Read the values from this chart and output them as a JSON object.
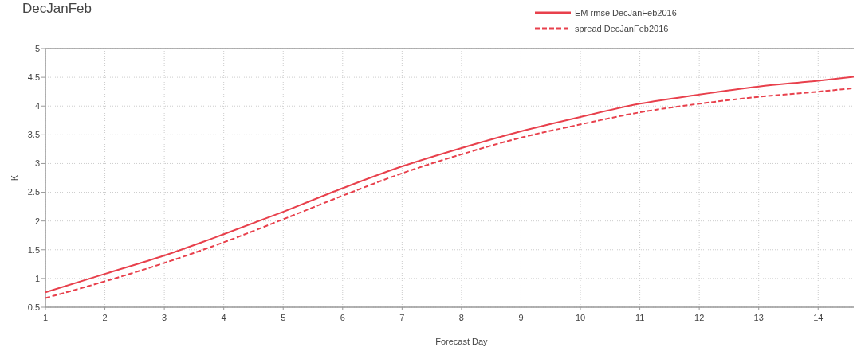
{
  "chart_data": {
    "type": "line",
    "title": "DecJanFeb",
    "xlabel": "Forecast Day",
    "ylabel": "K",
    "x": [
      1,
      2,
      3,
      4,
      5,
      6,
      7,
      8,
      9,
      10,
      11,
      12,
      13,
      14,
      14.6
    ],
    "series": [
      {
        "name": "EM rmse DecJanFeb2016",
        "color": "#e8404c",
        "line_style": "solid",
        "values": [
          0.76,
          1.08,
          1.4,
          1.77,
          2.16,
          2.57,
          2.95,
          3.27,
          3.56,
          3.81,
          4.04,
          4.2,
          4.34,
          4.44,
          4.51
        ]
      },
      {
        "name": "spread DecJanFeb2016",
        "color": "#e8404c",
        "line_style": "dashed",
        "values": [
          0.66,
          0.95,
          1.27,
          1.63,
          2.03,
          2.44,
          2.83,
          3.16,
          3.45,
          3.68,
          3.89,
          4.04,
          4.16,
          4.25,
          4.31
        ]
      }
    ],
    "xlim": [
      1,
      14.6
    ],
    "xticks": [
      1,
      2,
      3,
      4,
      5,
      6,
      7,
      8,
      9,
      10,
      11,
      12,
      13,
      14
    ],
    "ylim": [
      0.5,
      5
    ],
    "yticks": [
      0.5,
      1,
      1.5,
      2,
      2.5,
      3,
      3.5,
      4,
      4.5,
      5
    ],
    "grid": true,
    "legend": "top right",
    "marker": "none"
  }
}
